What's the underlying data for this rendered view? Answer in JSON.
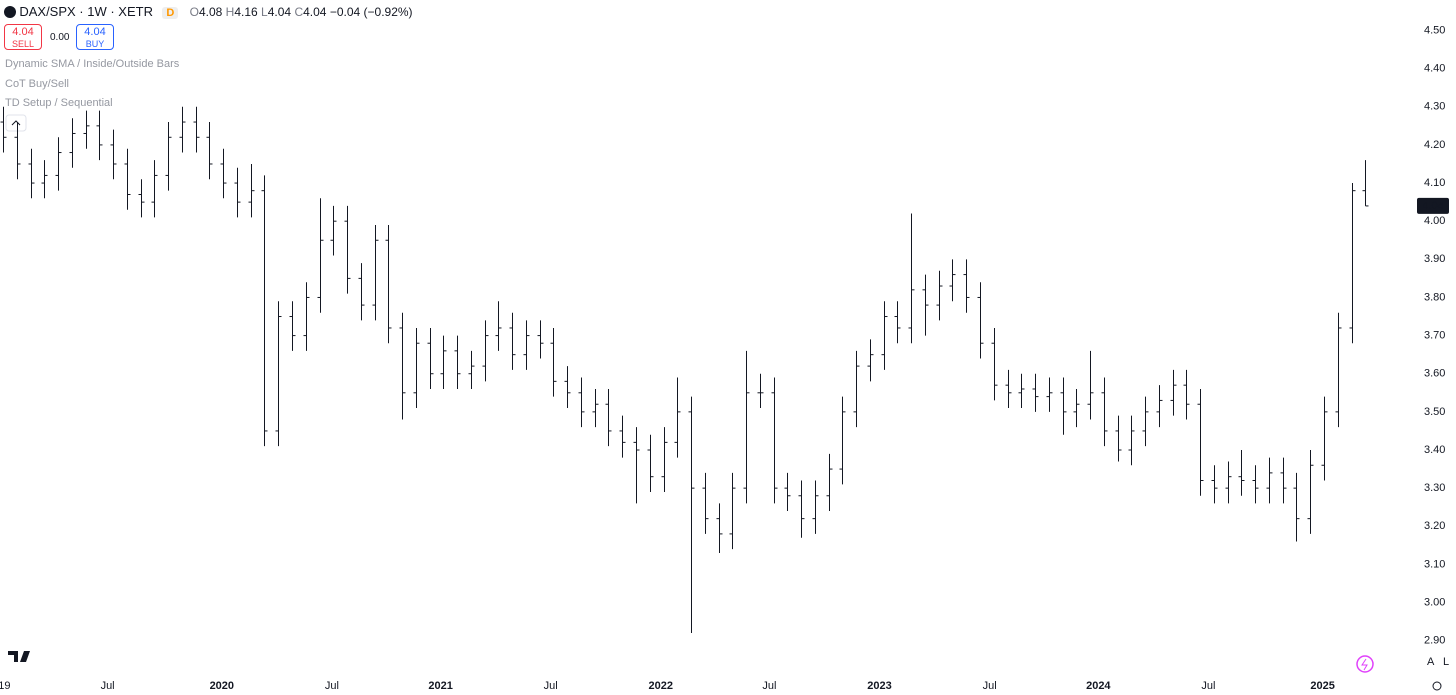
{
  "chart_data": {
    "type": "ohlc",
    "header": {
      "symbol": "DAX/SPX · 1W · XETR",
      "flag": "D",
      "open_label": "O",
      "high_label": "H",
      "low_label": "L",
      "close_label": "C",
      "change": "−0.04 (−0.92%)",
      "sell_price": "4.04",
      "sell_label": "SELL",
      "spread": "0.00",
      "buy_price": "4.04",
      "buy_label": "BUY"
    },
    "indicators": [
      "Dynamic SMA / Inside/Outside Bars",
      "CoT Buy/Sell",
      "TD Setup / Sequential"
    ],
    "color": "#131722",
    "series": {
      "open": [
        4.26,
        4.22,
        4.15,
        4.1,
        4.12,
        4.18,
        4.23,
        4.25,
        4.2,
        4.15,
        4.07,
        4.05,
        4.12,
        4.22,
        4.26,
        4.22,
        4.15,
        4.1,
        4.05,
        4.08,
        3.45,
        3.75,
        3.7,
        3.8,
        3.95,
        4.0,
        3.85,
        3.78,
        3.95,
        3.72,
        3.55,
        3.68,
        3.6,
        3.66,
        3.6,
        3.62,
        3.7,
        3.72,
        3.65,
        3.7,
        3.68,
        3.58,
        3.55,
        3.5,
        3.52,
        3.45,
        3.42,
        3.4,
        3.33,
        3.42,
        3.5,
        3.3,
        3.22,
        3.18,
        3.3,
        3.55,
        3.55,
        3.3,
        3.28,
        3.22,
        3.28,
        3.35,
        3.5,
        3.62,
        3.65,
        3.75,
        3.72,
        3.82,
        3.78,
        3.83,
        3.86,
        3.8,
        3.68,
        3.57,
        3.55,
        3.56,
        3.54,
        3.55,
        3.5,
        3.52,
        3.55,
        3.45,
        3.4,
        3.45,
        3.5,
        3.53,
        3.57,
        3.52,
        3.32,
        3.3,
        3.33,
        3.32,
        3.3,
        3.34,
        3.3,
        3.22,
        3.36,
        3.5,
        3.72,
        4.08
      ],
      "high": [
        4.3,
        4.26,
        4.19,
        4.16,
        4.22,
        4.27,
        4.29,
        4.29,
        4.24,
        4.19,
        4.11,
        4.16,
        4.26,
        4.3,
        4.3,
        4.26,
        4.19,
        4.14,
        4.15,
        4.12,
        3.79,
        3.79,
        3.84,
        4.06,
        4.04,
        4.04,
        3.89,
        3.99,
        3.99,
        3.76,
        3.72,
        3.72,
        3.7,
        3.7,
        3.66,
        3.74,
        3.79,
        3.76,
        3.74,
        3.74,
        3.72,
        3.62,
        3.59,
        3.56,
        3.56,
        3.49,
        3.46,
        3.44,
        3.46,
        3.59,
        3.54,
        3.34,
        3.26,
        3.34,
        3.66,
        3.6,
        3.59,
        3.34,
        3.32,
        3.32,
        3.39,
        3.54,
        3.66,
        3.69,
        3.79,
        3.79,
        4.02,
        3.86,
        3.87,
        3.9,
        3.9,
        3.84,
        3.72,
        3.61,
        3.6,
        3.6,
        3.59,
        3.59,
        3.56,
        3.66,
        3.59,
        3.49,
        3.49,
        3.54,
        3.57,
        3.61,
        3.61,
        3.56,
        3.36,
        3.37,
        3.4,
        3.36,
        3.38,
        3.38,
        3.34,
        3.4,
        3.54,
        3.76,
        4.1,
        4.16
      ],
      "low": [
        4.18,
        4.11,
        4.06,
        4.06,
        4.08,
        4.14,
        4.19,
        4.16,
        4.11,
        4.03,
        4.01,
        4.01,
        4.08,
        4.18,
        4.18,
        4.11,
        4.06,
        4.01,
        4.01,
        3.41,
        3.41,
        3.66,
        3.66,
        3.76,
        3.91,
        3.81,
        3.74,
        3.74,
        3.68,
        3.48,
        3.51,
        3.56,
        3.56,
        3.56,
        3.56,
        3.58,
        3.66,
        3.61,
        3.61,
        3.64,
        3.54,
        3.51,
        3.46,
        3.46,
        3.41,
        3.38,
        3.26,
        3.29,
        3.29,
        3.38,
        2.92,
        3.18,
        3.13,
        3.14,
        3.26,
        3.51,
        3.26,
        3.24,
        3.17,
        3.18,
        3.24,
        3.31,
        3.46,
        3.58,
        3.61,
        3.68,
        3.68,
        3.7,
        3.74,
        3.79,
        3.76,
        3.64,
        3.53,
        3.51,
        3.51,
        3.5,
        3.5,
        3.44,
        3.46,
        3.48,
        3.41,
        3.37,
        3.36,
        3.41,
        3.46,
        3.49,
        3.48,
        3.28,
        3.26,
        3.26,
        3.28,
        3.26,
        3.26,
        3.26,
        3.16,
        3.18,
        3.32,
        3.46,
        3.68,
        4.04
      ],
      "close": [
        4.22,
        4.15,
        4.1,
        4.12,
        4.18,
        4.23,
        4.25,
        4.2,
        4.15,
        4.07,
        4.05,
        4.12,
        4.22,
        4.26,
        4.22,
        4.15,
        4.1,
        4.05,
        4.08,
        3.45,
        3.75,
        3.7,
        3.8,
        3.95,
        4.0,
        3.85,
        3.78,
        3.95,
        3.72,
        3.55,
        3.68,
        3.6,
        3.66,
        3.6,
        3.62,
        3.7,
        3.72,
        3.65,
        3.7,
        3.68,
        3.58,
        3.55,
        3.5,
        3.52,
        3.45,
        3.42,
        3.4,
        3.33,
        3.42,
        3.5,
        3.3,
        3.22,
        3.18,
        3.3,
        3.55,
        3.55,
        3.3,
        3.28,
        3.22,
        3.28,
        3.35,
        3.5,
        3.62,
        3.65,
        3.75,
        3.72,
        3.82,
        3.78,
        3.83,
        3.86,
        3.8,
        3.68,
        3.57,
        3.55,
        3.56,
        3.54,
        3.55,
        3.5,
        3.52,
        3.55,
        3.45,
        3.4,
        3.45,
        3.5,
        3.53,
        3.57,
        3.52,
        3.32,
        3.3,
        3.33,
        3.32,
        3.3,
        3.34,
        3.3,
        3.22,
        3.36,
        3.5,
        3.72,
        4.08,
        4.04
      ]
    },
    "xlim": [
      -0.22,
      102.25
    ],
    "xticks": [
      {
        "value": 0.1,
        "label": "19"
      },
      {
        "value": 7.6,
        "label": "Jul"
      },
      {
        "value": 15.9,
        "label": "2020"
      },
      {
        "value": 23.9,
        "label": "Jul"
      },
      {
        "value": 31.8,
        "label": "2021"
      },
      {
        "value": 39.8,
        "label": "Jul"
      },
      {
        "value": 47.8,
        "label": "2022"
      },
      {
        "value": 55.7,
        "label": "Jul"
      },
      {
        "value": 63.7,
        "label": "2023"
      },
      {
        "value": 71.7,
        "label": "Jul"
      },
      {
        "value": 79.6,
        "label": "2024"
      },
      {
        "value": 87.6,
        "label": "Jul"
      },
      {
        "value": 95.9,
        "label": "2025"
      }
    ],
    "ylim": [
      2.81,
      4.58
    ],
    "yticks": [
      {
        "value": 2.9,
        "label": "2.90"
      },
      {
        "value": 3.0,
        "label": "3.00"
      },
      {
        "value": 3.1,
        "label": "3.10"
      },
      {
        "value": 3.2,
        "label": "3.20"
      },
      {
        "value": 3.3,
        "label": "3.30"
      },
      {
        "value": 3.4,
        "label": "3.40"
      },
      {
        "value": 3.5,
        "label": "3.50"
      },
      {
        "value": 3.6,
        "label": "3.60"
      },
      {
        "value": 3.7,
        "label": "3.70"
      },
      {
        "value": 3.8,
        "label": "3.80"
      },
      {
        "value": 3.9,
        "label": "3.90"
      },
      {
        "value": 4.0,
        "label": "4.00"
      },
      {
        "value": 4.1,
        "label": "4.10"
      },
      {
        "value": 4.2,
        "label": "4.20"
      },
      {
        "value": 4.3,
        "label": "4.30"
      },
      {
        "value": 4.4,
        "label": "4.40"
      },
      {
        "value": 4.5,
        "label": "4.50"
      }
    ],
    "grid": false
  }
}
